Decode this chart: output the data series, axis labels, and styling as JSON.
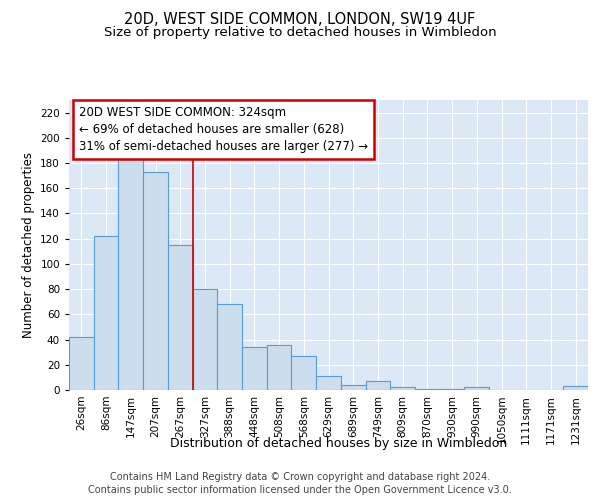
{
  "title": "20D, WEST SIDE COMMON, LONDON, SW19 4UF",
  "subtitle": "Size of property relative to detached houses in Wimbledon",
  "xlabel": "Distribution of detached houses by size in Wimbledon",
  "ylabel": "Number of detached properties",
  "categories": [
    "26sqm",
    "86sqm",
    "147sqm",
    "207sqm",
    "267sqm",
    "327sqm",
    "388sqm",
    "448sqm",
    "508sqm",
    "568sqm",
    "629sqm",
    "689sqm",
    "749sqm",
    "809sqm",
    "870sqm",
    "930sqm",
    "990sqm",
    "1050sqm",
    "1111sqm",
    "1171sqm",
    "1231sqm"
  ],
  "values": [
    42,
    122,
    183,
    173,
    115,
    80,
    68,
    34,
    36,
    27,
    11,
    4,
    7,
    2,
    1,
    1,
    2,
    0,
    0,
    0,
    3
  ],
  "bar_color": "#ccdded",
  "bar_edge_color": "#5b9bd5",
  "annotation_text": "20D WEST SIDE COMMON: 324sqm\n← 69% of detached houses are smaller (628)\n31% of semi-detached houses are larger (277) →",
  "annotation_box_facecolor": "#ffffff",
  "annotation_box_edgecolor": "#cc0000",
  "vline_color": "#cc0000",
  "vline_x": 5,
  "ylim": [
    0,
    230
  ],
  "yticks": [
    0,
    20,
    40,
    60,
    80,
    100,
    120,
    140,
    160,
    180,
    200,
    220
  ],
  "grid_color": "#ffffff",
  "background_color": "#dce8f5",
  "footer_line1": "Contains HM Land Registry data © Crown copyright and database right 2024.",
  "footer_line2": "Contains public sector information licensed under the Open Government Licence v3.0.",
  "title_fontsize": 10.5,
  "subtitle_fontsize": 9.5,
  "ylabel_fontsize": 8.5,
  "xlabel_fontsize": 9,
  "tick_fontsize": 7.5,
  "annotation_fontsize": 8.5,
  "footer_fontsize": 7
}
